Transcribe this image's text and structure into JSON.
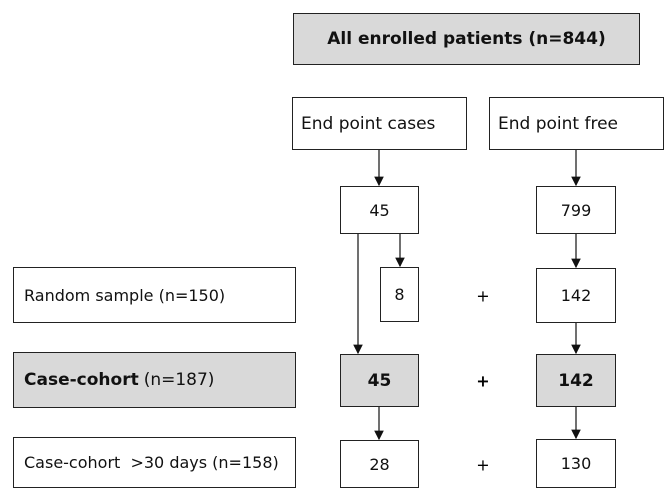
{
  "header": {
    "title": "All enrolled patients (n=844)"
  },
  "groups": {
    "cases": "End point cases",
    "free": "End point free"
  },
  "totals": {
    "cases": 45,
    "free": 799
  },
  "rows": [
    {
      "label": "Random sample (n=150)",
      "cases": 8,
      "plus": "+",
      "free": 142
    },
    {
      "label_bold": "Case-cohort",
      "label": "(n=187)",
      "cases": 45,
      "plus": "+",
      "free": 142
    },
    {
      "label": "Case-cohort  >30 days (n=158)",
      "cases": 28,
      "plus": "+",
      "free": 130
    }
  ]
}
